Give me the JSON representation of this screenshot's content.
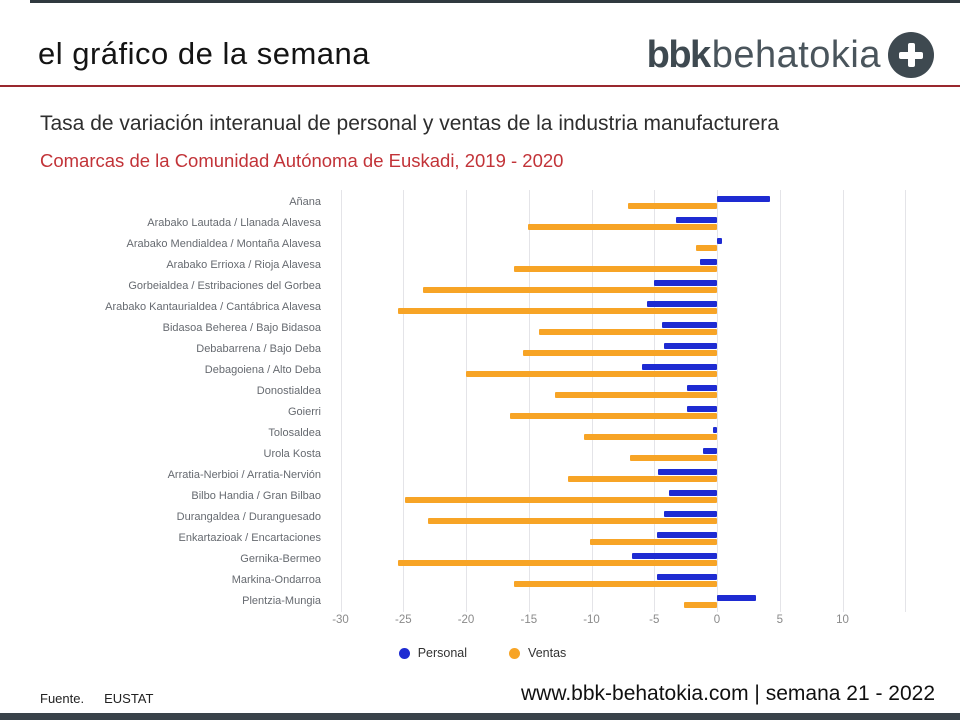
{
  "header": {
    "title": "el gráfico de la semana",
    "logo": {
      "bold": "bbk",
      "light": "behatokia",
      "icon": "plus-circle"
    }
  },
  "titles": {
    "main": "Tasa de variación interanual de personal y ventas de la industria manufacturera",
    "sub": "Comarcas de la Comunidad Autónoma de Euskadi, 2019 - 2020"
  },
  "footer": {
    "source_label": "Fuente.",
    "source_value": "EUSTAT",
    "site": "www.bbk-behatokia.com | semana 21 - 2022"
  },
  "colors": {
    "personal_blue": "#1e2bd2",
    "ventas_orange": "#f7a426",
    "divider_red": "#99282e",
    "subtitle_red": "#c23338",
    "slate": "#3e4950"
  },
  "chart_data": {
    "type": "bar",
    "orientation": "horizontal",
    "title": "Tasa de variación interanual de personal y ventas de la industria manufacturera",
    "subtitle": "Comarcas de la Comunidad Autónoma de Euskadi, 2019 - 2020",
    "categories": [
      "Añana",
      "Arabako Lautada / Llanada Alavesa",
      "Arabako Mendialdea / Montaña Alavesa",
      "Arabako Errioxa / Rioja Alavesa",
      "Gorbeialdea / Estribaciones del Gorbea",
      "Arabako Kantaurialdea / Cantábrica Alavesa",
      "Bidasoa Beherea / Bajo Bidasoa",
      "Debabarrena / Bajo Deba",
      "Debagoiena / Alto Deba",
      "Donostialdea",
      "Goierri",
      "Tolosaldea",
      "Urola Kosta",
      "Arratia-Nerbioi / Arratia-Nervión",
      "Bilbo Handia / Gran Bilbao",
      "Durangaldea / Duranguesado",
      "Enkartazioak / Encartaciones",
      "Gernika-Bermeo",
      "Markina-Ondarroa",
      "Plentzia-Mungia"
    ],
    "series": [
      {
        "name": "Personal",
        "color": "#1e2bd2",
        "values": [
          4.2,
          -3.3,
          0.4,
          -1.4,
          -5.0,
          -5.6,
          -4.4,
          -4.2,
          -6.0,
          -2.4,
          -2.4,
          -0.3,
          -1.1,
          -4.7,
          -3.8,
          -4.2,
          -4.8,
          -6.8,
          -4.8,
          3.1
        ]
      },
      {
        "name": "Ventas",
        "color": "#f7a426",
        "values": [
          -7.1,
          -15.1,
          -1.7,
          -16.2,
          -23.4,
          -25.4,
          -14.2,
          -15.5,
          -20.0,
          -12.9,
          -16.5,
          -10.6,
          -6.9,
          -11.9,
          -24.9,
          -23.0,
          -10.1,
          -25.4,
          -16.2,
          -2.6
        ]
      }
    ],
    "x_ticks": [
      -30,
      -25,
      -20,
      -15,
      -10,
      -5,
      0,
      5,
      10
    ],
    "grid_values": [
      -30,
      -25,
      -20,
      -15,
      -10,
      -5,
      0,
      5,
      10,
      15
    ],
    "xlim": [
      -30.6,
      17.4
    ],
    "grid": true,
    "legend_position": "bottom"
  }
}
